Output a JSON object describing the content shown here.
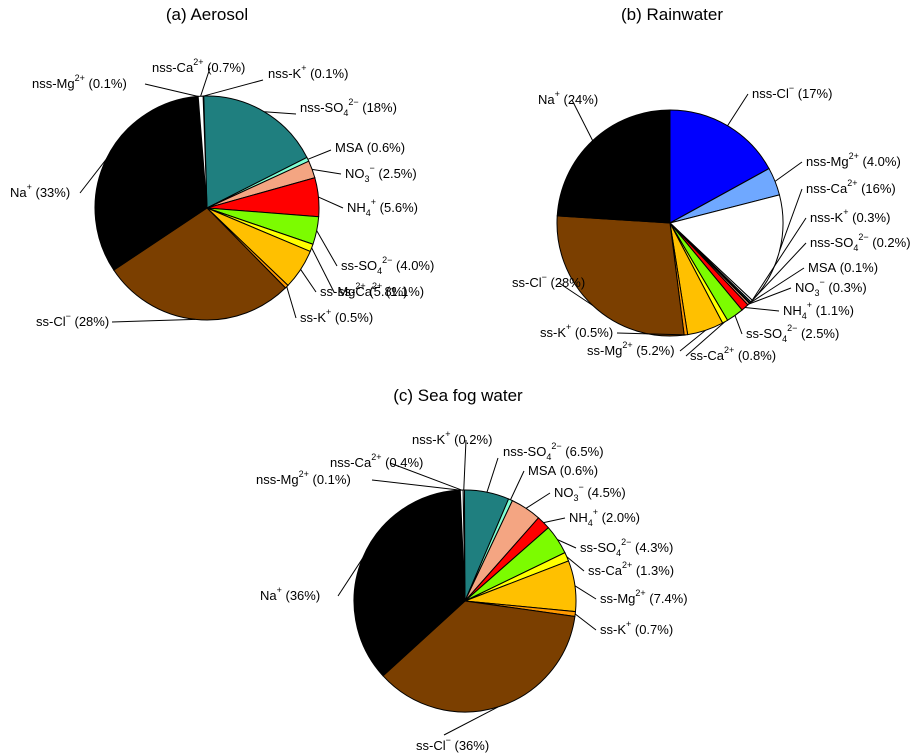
{
  "chart_data": [
    {
      "type": "pie",
      "title": "(a) Aerosol",
      "slices": [
        {
          "name": "nss-K",
          "sup": "+",
          "value": 0.1,
          "label": "(0.1%)",
          "color": "#ffffff"
        },
        {
          "name": "nss-SO",
          "sub": "4",
          "sup": "2−",
          "value": 18,
          "label": "(18%)",
          "color": "#1f7f7f"
        },
        {
          "name": "MSA",
          "value": 0.6,
          "label": "(0.6%)",
          "color": "#7fffd4"
        },
        {
          "name": "NO",
          "sub": "3",
          "sup": "−",
          "value": 2.5,
          "label": "(2.5%)",
          "color": "#f4a582"
        },
        {
          "name": "NH",
          "sub": "4",
          "sup": "+",
          "value": 5.6,
          "label": "(5.6%)",
          "color": "#ff0000"
        },
        {
          "name": "ss-SO",
          "sub": "4",
          "sup": "2−",
          "value": 4.0,
          "label": "(4.0%)",
          "color": "#7cfc00"
        },
        {
          "name": "ss-Ca",
          "sup": "2+",
          "value": 1.1,
          "label": "(1.1%)",
          "color": "#ffff00"
        },
        {
          "name": "ss-Mg",
          "sup": "2+",
          "value": 5.8,
          "label": "(5.8%)",
          "color": "#ffc000"
        },
        {
          "name": "ss-K",
          "sup": "+",
          "value": 0.5,
          "label": "(0.5%)",
          "color": "#ff9900"
        },
        {
          "name": "ss-Cl",
          "sup": "−",
          "value": 28,
          "label": "(28%)",
          "color": "#7b3f00"
        },
        {
          "name": "Na",
          "sup": "+",
          "value": 33,
          "label": "(33%)",
          "color": "#000000"
        },
        {
          "name": "nss-Mg",
          "sup": "2+",
          "value": 0.1,
          "label": "(0.1%)",
          "color": "#6fa8ff"
        },
        {
          "name": "nss-Ca",
          "sup": "2+",
          "value": 0.7,
          "label": "(0.7%)",
          "color": "#ffffff"
        }
      ]
    },
    {
      "type": "pie",
      "title": "(b) Rainwater",
      "slices": [
        {
          "name": "nss-Cl",
          "sup": "−",
          "value": 17,
          "label": "(17%)",
          "color": "#0000ff"
        },
        {
          "name": "nss-Mg",
          "sup": "2+",
          "value": 4.0,
          "label": "(4.0%)",
          "color": "#6fa8ff"
        },
        {
          "name": "nss-Ca",
          "sup": "2+",
          "value": 16,
          "label": "(16%)",
          "color": "#ffffff"
        },
        {
          "name": "nss-K",
          "sup": "+",
          "value": 0.3,
          "label": "(0.3%)",
          "color": "#ffffff"
        },
        {
          "name": "nss-SO",
          "sub": "4",
          "sup": "2−",
          "value": 0.2,
          "label": "(0.2%)",
          "color": "#1f7f7f"
        },
        {
          "name": "MSA",
          "value": 0.1,
          "label": "(0.1%)",
          "color": "#7fffd4"
        },
        {
          "name": "NO",
          "sub": "3",
          "sup": "−",
          "value": 0.3,
          "label": "(0.3%)",
          "color": "#f4a582"
        },
        {
          "name": "NH",
          "sub": "4",
          "sup": "+",
          "value": 1.1,
          "label": "(1.1%)",
          "color": "#ff0000"
        },
        {
          "name": "ss-SO",
          "sub": "4",
          "sup": "2−",
          "value": 2.5,
          "label": "(2.5%)",
          "color": "#7cfc00"
        },
        {
          "name": "ss-Ca",
          "sup": "2+",
          "value": 0.8,
          "label": "(0.8%)",
          "color": "#ffff00"
        },
        {
          "name": "ss-Mg",
          "sup": "2+",
          "value": 5.2,
          "label": "(5.2%)",
          "color": "#ffc000"
        },
        {
          "name": "ss-K",
          "sup": "+",
          "value": 0.5,
          "label": "(0.5%)",
          "color": "#ff9900"
        },
        {
          "name": "ss-Cl",
          "sup": "−",
          "value": 28,
          "label": "(28%)",
          "color": "#7b3f00"
        },
        {
          "name": "Na",
          "sup": "+",
          "value": 24,
          "label": "(24%)",
          "color": "#000000"
        }
      ]
    },
    {
      "type": "pie",
      "title": "(c) Sea fog water",
      "slices": [
        {
          "name": "nss-K",
          "sup": "+",
          "value": 0.2,
          "label": "(0.2%)",
          "color": "#ffffff"
        },
        {
          "name": "nss-SO",
          "sub": "4",
          "sup": "2−",
          "value": 6.5,
          "label": "(6.5%)",
          "color": "#1f7f7f"
        },
        {
          "name": "MSA",
          "value": 0.6,
          "label": "(0.6%)",
          "color": "#7fffd4"
        },
        {
          "name": "NO",
          "sub": "3",
          "sup": "−",
          "value": 4.5,
          "label": "(4.5%)",
          "color": "#f4a582"
        },
        {
          "name": "NH",
          "sub": "4",
          "sup": "+",
          "value": 2.0,
          "label": "(2.0%)",
          "color": "#ff0000"
        },
        {
          "name": "ss-SO",
          "sub": "4",
          "sup": "2−",
          "value": 4.3,
          "label": "(4.3%)",
          "color": "#7cfc00"
        },
        {
          "name": "ss-Ca",
          "sup": "2+",
          "value": 1.3,
          "label": "(1.3%)",
          "color": "#ffff00"
        },
        {
          "name": "ss-Mg",
          "sup": "2+",
          "value": 7.4,
          "label": "(7.4%)",
          "color": "#ffc000"
        },
        {
          "name": "ss-K",
          "sup": "+",
          "value": 0.7,
          "label": "(0.7%)",
          "color": "#ff9900"
        },
        {
          "name": "ss-Cl",
          "sup": "−",
          "value": 36,
          "label": "(36%)",
          "color": "#7b3f00"
        },
        {
          "name": "Na",
          "sup": "+",
          "value": 36,
          "label": "(36%)",
          "color": "#000000"
        },
        {
          "name": "nss-Mg",
          "sup": "2+",
          "value": 0.1,
          "label": "(0.1%)",
          "color": "#6fa8ff"
        },
        {
          "name": "nss-Ca",
          "sup": "2+",
          "value": 0.4,
          "label": "(0.4%)",
          "color": "#ffffff"
        }
      ]
    }
  ]
}
